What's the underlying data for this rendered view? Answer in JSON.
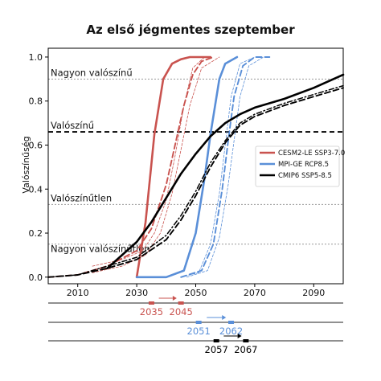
{
  "chart_data": {
    "type": "line",
    "title": "Az első jégmentes szeptember",
    "xlabel": "",
    "ylabel": "Valószínűség",
    "xlim": [
      2000,
      2100
    ],
    "ylim": [
      -0.03,
      1.04
    ],
    "xticks": [
      2010,
      2030,
      2050,
      2070,
      2090
    ],
    "yticks": [
      0.0,
      0.2,
      0.4,
      0.6,
      0.8,
      1.0
    ],
    "ytick_labels": [
      "0.0",
      "0.2",
      "0.4",
      "0.6",
      "0.8",
      "1.0"
    ],
    "grid": false,
    "legend_position": "center-right",
    "reference_lines": [
      {
        "label": "Nagyon valószínű",
        "y": 0.9,
        "style": "dotted",
        "color": "#999999"
      },
      {
        "label": "Valószínű",
        "y": 0.66,
        "style": "dashed",
        "color": "#000000"
      },
      {
        "label": "Valószínűtlen",
        "y": 0.33,
        "style": "dotted",
        "color": "#999999"
      },
      {
        "label": "Nagyon valószínűtlen",
        "y": 0.15,
        "style": "dotted",
        "color": "#999999"
      }
    ],
    "series": [
      {
        "name": "CESM2-LE SSP3-7.0",
        "color": "#c9534f",
        "role": "solid",
        "x": [
          2030,
          2033,
          2036,
          2039,
          2042,
          2045,
          2048,
          2052,
          2055
        ],
        "y": [
          0.0,
          0.25,
          0.65,
          0.9,
          0.97,
          0.99,
          1.0,
          1.0,
          1.0
        ]
      },
      {
        "name": "",
        "color": "#c9534f",
        "role": "dashed",
        "x": [
          2000,
          2010,
          2020,
          2030,
          2035,
          2040,
          2043,
          2046,
          2049,
          2052,
          2056
        ],
        "y": [
          0.0,
          0.01,
          0.05,
          0.12,
          0.22,
          0.42,
          0.6,
          0.78,
          0.92,
          0.98,
          1.0
        ]
      },
      {
        "name": "",
        "color": "#c9534f",
        "role": "thin",
        "x": [
          2015,
          2025,
          2032,
          2036,
          2040,
          2043,
          2046,
          2049,
          2053
        ],
        "y": [
          0.05,
          0.08,
          0.12,
          0.2,
          0.35,
          0.55,
          0.78,
          0.95,
          1.0
        ]
      },
      {
        "name": "",
        "color": "#c9534f",
        "role": "thin",
        "x": [
          2015,
          2025,
          2033,
          2038,
          2042,
          2045,
          2048,
          2052,
          2058
        ],
        "y": [
          0.02,
          0.05,
          0.1,
          0.2,
          0.38,
          0.58,
          0.78,
          0.95,
          1.0
        ]
      },
      {
        "name": "MPI-GE RCP8.5",
        "color": "#5a8fd8",
        "role": "solid",
        "x": [
          2030,
          2040,
          2046,
          2050,
          2053,
          2055,
          2058,
          2060,
          2064
        ],
        "y": [
          0.0,
          0.0,
          0.03,
          0.2,
          0.45,
          0.65,
          0.9,
          0.97,
          1.0
        ]
      },
      {
        "name": "",
        "color": "#5a8fd8",
        "role": "dashed",
        "x": [
          2045,
          2052,
          2056,
          2059,
          2061,
          2063,
          2066,
          2070,
          2075
        ],
        "y": [
          0.0,
          0.03,
          0.15,
          0.4,
          0.62,
          0.82,
          0.96,
          1.0,
          1.0
        ]
      },
      {
        "name": "",
        "color": "#5a8fd8",
        "role": "thin",
        "x": [
          2045,
          2051,
          2055,
          2058,
          2060,
          2062,
          2065,
          2070
        ],
        "y": [
          0.0,
          0.02,
          0.15,
          0.38,
          0.6,
          0.82,
          0.97,
          1.0
        ]
      },
      {
        "name": "",
        "color": "#5a8fd8",
        "role": "thin",
        "x": [
          2047,
          2054,
          2058,
          2061,
          2063,
          2065,
          2068,
          2073
        ],
        "y": [
          0.0,
          0.03,
          0.18,
          0.42,
          0.62,
          0.82,
          0.96,
          1.0
        ]
      },
      {
        "name": "CMIP6 SSP5-8.5",
        "color": "#000000",
        "role": "solid",
        "x": [
          2020,
          2025,
          2030,
          2035,
          2040,
          2045,
          2050,
          2055,
          2060,
          2065,
          2070,
          2080,
          2090,
          2100
        ],
        "y": [
          0.04,
          0.1,
          0.16,
          0.25,
          0.36,
          0.47,
          0.56,
          0.64,
          0.7,
          0.74,
          0.77,
          0.81,
          0.86,
          0.92
        ]
      },
      {
        "name": "",
        "color": "#000000",
        "role": "dashed",
        "x": [
          2000,
          2010,
          2020,
          2030,
          2040,
          2045,
          2050,
          2055,
          2060,
          2065,
          2070,
          2080,
          2090,
          2100
        ],
        "y": [
          0.0,
          0.01,
          0.04,
          0.08,
          0.17,
          0.26,
          0.37,
          0.5,
          0.61,
          0.69,
          0.73,
          0.78,
          0.82,
          0.86
        ]
      },
      {
        "name": "",
        "color": "#000000",
        "role": "dashdot",
        "x": [
          2000,
          2010,
          2020,
          2030,
          2040,
          2045,
          2050,
          2055,
          2060,
          2065,
          2070,
          2080,
          2090,
          2100
        ],
        "y": [
          0.0,
          0.01,
          0.05,
          0.09,
          0.19,
          0.28,
          0.39,
          0.52,
          0.62,
          0.7,
          0.74,
          0.79,
          0.83,
          0.87
        ]
      }
    ],
    "markers": [
      {
        "color": "#c9534f",
        "from": "2035",
        "to": "2045",
        "from_year": 2035,
        "to_year": 2045
      },
      {
        "color": "#5a8fd8",
        "from": "2051",
        "to": "2062",
        "from_year": 2051,
        "to_year": 2062
      },
      {
        "color": "#000000",
        "from": "2057",
        "to": "2067",
        "from_year": 2057,
        "to_year": 2067
      }
    ]
  }
}
